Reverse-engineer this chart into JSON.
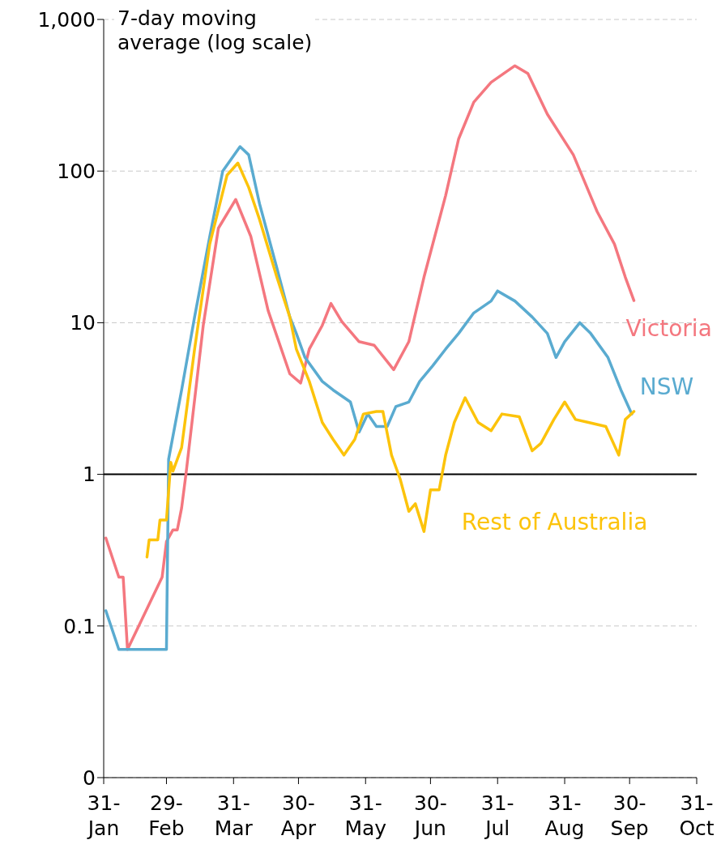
{
  "chart_data": {
    "type": "line",
    "ylabel": "7-day moving average (log scale)",
    "log": "y",
    "grid": "y",
    "legend": false,
    "marker": "none",
    "line_style": "solid",
    "xlim": [
      "--01-31",
      "--10-31"
    ],
    "xticks": [
      {
        "value": "--01-31",
        "label": "31-Jan"
      },
      {
        "value": "--02-29",
        "label": "29-Feb"
      },
      {
        "value": "--03-31",
        "label": "31-Mar"
      },
      {
        "value": "--04-30",
        "label": "30-Apr"
      },
      {
        "value": "--05-31",
        "label": "31-May"
      },
      {
        "value": "--06-30",
        "label": "30-Jun"
      },
      {
        "value": "--07-31",
        "label": "31-Jul"
      },
      {
        "value": "--08-31",
        "label": "31-Aug"
      },
      {
        "value": "--09-30",
        "label": "30-Sep"
      },
      {
        "value": "--10-31",
        "label": "31-Oct"
      }
    ],
    "ylim": [
      0.01,
      1000
    ],
    "yticks": [
      {
        "value": 0.01,
        "label": "0"
      },
      0.1,
      1,
      10,
      100,
      {
        "value": 1000,
        "label": "1,000"
      }
    ],
    "ref_lines": [
      {
        "axis": "y",
        "value": 1,
        "color": "#000000"
      }
    ],
    "series": [
      {
        "name": "Victoria",
        "color": "#f4777f",
        "x": [
          "--02-01",
          "--02-07",
          "--02-09",
          "--02-11",
          "--02-27",
          "--02-29",
          "--03-03",
          "--03-05",
          "--03-07",
          "--03-09",
          "--03-17",
          "--03-24",
          "--04-01",
          "--04-08",
          "--04-16",
          "--04-26",
          "--05-01",
          "--05-05",
          "--05-11",
          "--05-15",
          "--05-20",
          "--05-28",
          "--06-04",
          "--06-13",
          "--06-20",
          "--06-27",
          "--07-07",
          "--07-13",
          "--07-20",
          "--07-28",
          "--08-08",
          "--08-14",
          "--08-23",
          "--09-04",
          "--09-15",
          "--09-23",
          "--09-28",
          "--10-02"
        ],
        "values": [
          0.38,
          0.21,
          0.21,
          0.07,
          0.21,
          0.36,
          0.43,
          0.43,
          0.6,
          1.0,
          9.6,
          42,
          65,
          37,
          12,
          4.6,
          4,
          6.7,
          9.6,
          13.4,
          10.2,
          7.5,
          7.1,
          4.9,
          7.5,
          20,
          69,
          163,
          285,
          385,
          495,
          440,
          237,
          128,
          54,
          33,
          20,
          14
        ]
      },
      {
        "name": "NSW",
        "color": "#5aabd0",
        "x": [
          "--02-01",
          "--02-07",
          "--02-29",
          "--03-01",
          "--03-07",
          "--03-13",
          "--03-20",
          "--03-26",
          "--04-03",
          "--04-07",
          "--04-12",
          "--04-20",
          "--04-26",
          "--04-29",
          "--05-03",
          "--05-11",
          "--05-16",
          "--05-24",
          "--05-28",
          "--06-01",
          "--06-05",
          "--06-10",
          "--06-14",
          "--06-20",
          "--06-25",
          "--07-01",
          "--07-07",
          "--07-13",
          "--07-20",
          "--07-28",
          "--07-31",
          "--08-08",
          "--08-16",
          "--08-23",
          "--08-27",
          "--08-31",
          "--09-07",
          "--09-12",
          "--09-20",
          "--09-26",
          "--10-01"
        ],
        "values": [
          0.126,
          0.07,
          0.07,
          1.26,
          3.6,
          10.9,
          37,
          100,
          145,
          128,
          61,
          23,
          10.9,
          8.5,
          5.9,
          4.1,
          3.6,
          3.0,
          1.9,
          2.5,
          2.07,
          2.07,
          2.8,
          3.0,
          4.1,
          5.2,
          6.7,
          8.5,
          11.6,
          13.9,
          16.2,
          13.9,
          10.9,
          8.5,
          5.9,
          7.5,
          10,
          8.5,
          5.9,
          3.6,
          2.5
        ]
      },
      {
        "name": "Rest of Australia",
        "color": "#fcc30b",
        "x": [
          "--02-20",
          "--02-21",
          "--02-25",
          "--02-26",
          "--02-29",
          "--03-02",
          "--03-03",
          "--03-07",
          "--03-13",
          "--03-20",
          "--03-28",
          "--04-02",
          "--04-07",
          "--04-12",
          "--04-20",
          "--04-26",
          "--04-29",
          "--05-05",
          "--05-11",
          "--05-16",
          "--05-21",
          "--05-26",
          "--05-30",
          "--06-05",
          "--06-08",
          "--06-12",
          "--06-16",
          "--06-20",
          "--06-23",
          "--06-27",
          "--06-30",
          "--07-04",
          "--07-07",
          "--07-11",
          "--07-16",
          "--07-22",
          "--07-28",
          "--08-02",
          "--08-10",
          "--08-16",
          "--08-20",
          "--08-26",
          "--08-31",
          "--09-05",
          "--09-11",
          "--09-19",
          "--09-25",
          "--09-28",
          "--10-02"
        ],
        "values": [
          0.285,
          0.37,
          0.37,
          0.5,
          0.5,
          1.2,
          1.05,
          1.5,
          6.7,
          33,
          94,
          113,
          78,
          48,
          20,
          10.9,
          6.7,
          4.1,
          2.2,
          1.7,
          1.34,
          1.7,
          2.5,
          2.6,
          2.6,
          1.34,
          0.93,
          0.57,
          0.64,
          0.42,
          0.79,
          0.79,
          1.34,
          2.2,
          3.2,
          2.2,
          1.94,
          2.5,
          2.4,
          1.43,
          1.6,
          2.3,
          3.0,
          2.3,
          2.2,
          2.07,
          1.34,
          2.3,
          2.6
        ]
      }
    ]
  }
}
